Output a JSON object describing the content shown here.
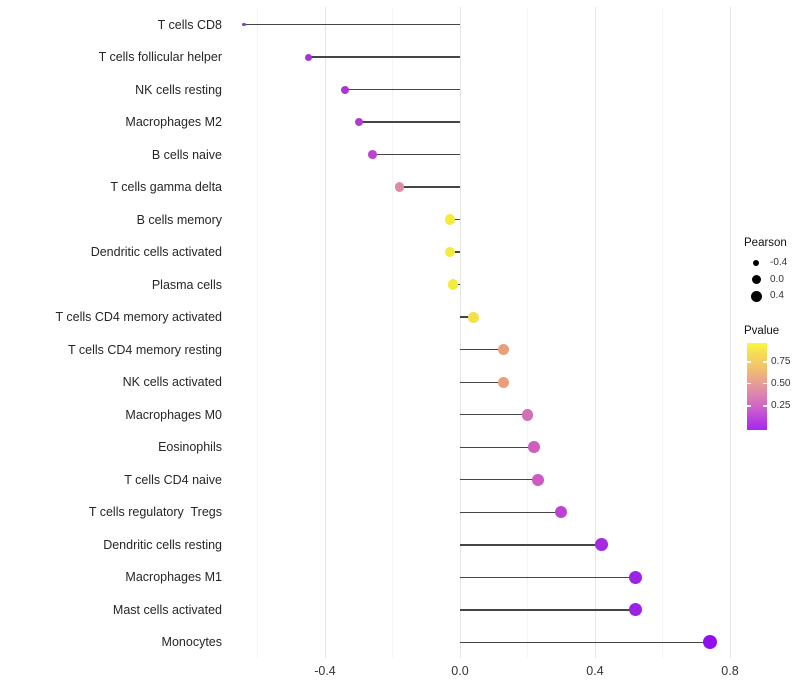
{
  "chart_data": {
    "type": "scatter",
    "variant": "lollipop",
    "title": "",
    "xlabel": "",
    "ylabel": "",
    "xlim": [
      -0.68,
      0.99
    ],
    "grid": true,
    "categories": [
      "T cells CD8",
      "T cells follicular helper",
      "NK cells resting",
      "Macrophages M2",
      "B cells naive",
      "T cells gamma delta",
      "B cells memory",
      "Dendritic cells activated",
      "Plasma cells",
      "T cells CD4 memory activated",
      "T cells CD4 memory resting",
      "NK cells activated",
      "Macrophages M0",
      "Eosinophils",
      "T cells CD4 naive",
      "T cells regulatory  Tregs",
      "Dendritic cells resting",
      "Macrophages M1",
      "Mast cells activated",
      "Monocytes"
    ],
    "values": [
      -0.64,
      -0.45,
      -0.34,
      -0.3,
      -0.26,
      -0.18,
      -0.03,
      -0.03,
      -0.02,
      0.04,
      0.13,
      0.13,
      0.2,
      0.22,
      0.23,
      0.3,
      0.42,
      0.52,
      0.52,
      0.74
    ],
    "point_colors": [
      "#aa30ce",
      "#a832d8",
      "#aa36d2",
      "#b23ccf",
      "#ba46cc",
      "#de8aab",
      "#f4eb3d",
      "#f4eb3d",
      "#f4eb3d",
      "#f1e24a",
      "#ea9e79",
      "#ea9e79",
      "#d56fb2",
      "#ce5fbe",
      "#cc5ac2",
      "#bc42d4",
      "#a62bde",
      "#9c22e4",
      "#9c22e4",
      "#9210ee"
    ],
    "point_radii": [
      1.8,
      3.5,
      4.0,
      4.2,
      4.4,
      4.7,
      5.2,
      5.2,
      5.2,
      5.4,
      5.6,
      5.6,
      5.8,
      5.9,
      5.9,
      6.1,
      6.4,
      6.6,
      6.6,
      7.0
    ],
    "x_ticks": [
      {
        "label": "-0.4",
        "value": -0.4
      },
      {
        "label": "0.0",
        "value": 0.0
      },
      {
        "label": "0.4",
        "value": 0.4
      },
      {
        "label": "0.8",
        "value": 0.8
      }
    ],
    "minor_grid_values": [
      -0.6,
      -0.2,
      0.2,
      0.6
    ],
    "colors": {
      "stem": "#454545",
      "grid_major": "#e4e4e4",
      "grid_minor": "#f4f4f4",
      "background": "#ffffff"
    }
  },
  "legend": {
    "size": {
      "title": "Pearson",
      "entries": [
        {
          "label": "-0.4",
          "radius": 3.3
        },
        {
          "label": "0.0",
          "radius": 4.5
        },
        {
          "label": "0.4",
          "radius": 5.5
        }
      ]
    },
    "color": {
      "title": "Pvalue",
      "ticks": [
        {
          "label": "0.75"
        },
        {
          "label": "0.50"
        },
        {
          "label": "0.25"
        }
      ],
      "gradient_top": "#fbf73b",
      "gradient_bottom": "#a428f0"
    }
  }
}
